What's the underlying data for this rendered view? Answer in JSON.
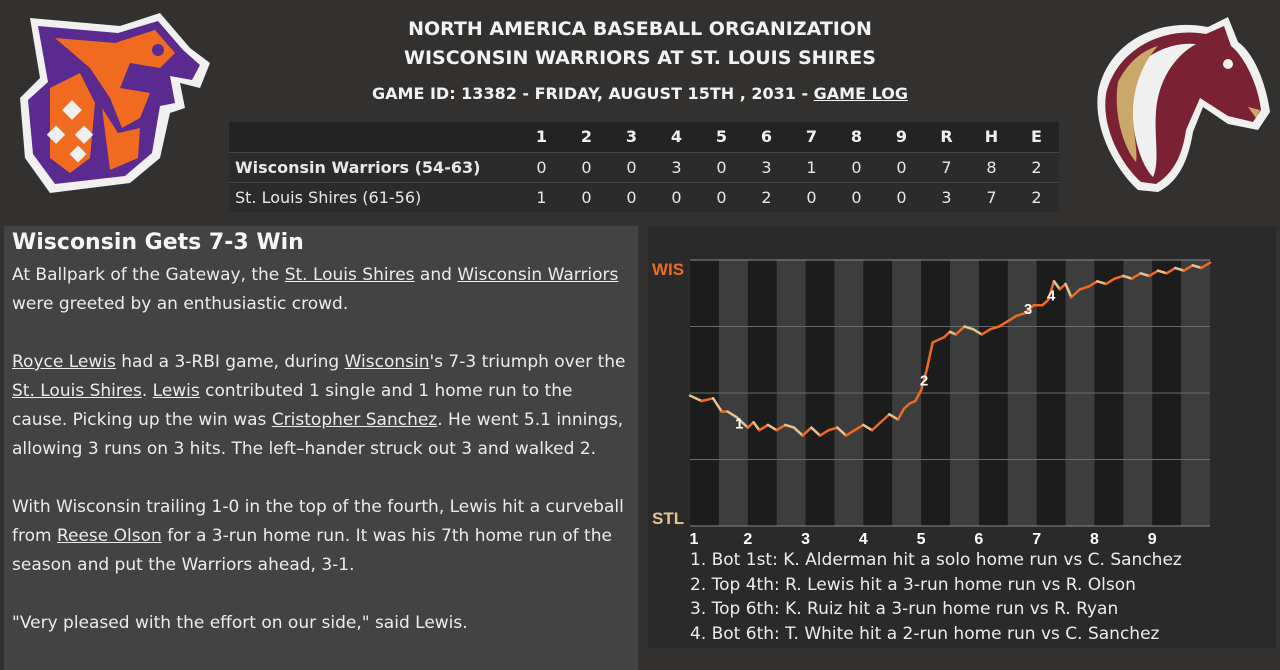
{
  "header": {
    "league": "NORTH AMERICA BASEBALL ORGANIZATION",
    "matchup": "WISCONSIN WARRIORS AT ST. LOUIS SHIRES",
    "game_info_prefix": "GAME ID: 13382 - FRIDAY, AUGUST 15TH , 2031 - ",
    "game_log_link": "GAME LOG"
  },
  "linescore": {
    "headers": [
      "1",
      "2",
      "3",
      "4",
      "5",
      "6",
      "7",
      "8",
      "9",
      "R",
      "H",
      "E"
    ],
    "away": {
      "team": "Wisconsin Warriors (54-63)",
      "scores": [
        "0",
        "0",
        "0",
        "3",
        "0",
        "3",
        "1",
        "0",
        "0",
        "7",
        "8",
        "2"
      ]
    },
    "home": {
      "team": "St. Louis Shires (61-56)",
      "scores": [
        "1",
        "0",
        "0",
        "0",
        "0",
        "2",
        "0",
        "0",
        "0",
        "3",
        "7",
        "2"
      ]
    }
  },
  "recap": {
    "headline": "Wisconsin Gets 7-3 Win",
    "p1": {
      "a": "At Ballpark of the Gateway, the ",
      "link1": "St. Louis Shires",
      "b": " and ",
      "link2": "Wisconsin Warriors",
      "c": " were greeted by an enthusiastic crowd."
    },
    "p2": {
      "link1": "Royce Lewis",
      "a": " had a 3-RBI game, during ",
      "link2": "Wisconsin",
      "b": "'s 7-3 triumph over the ",
      "link3": "St. Louis Shires",
      "c": ". ",
      "link4": "Lewis",
      "d": " contributed 1 single and 1 home run to the cause. Picking up the win was ",
      "link5": "Cristopher Sanchez",
      "e": ". He went 5.1 innings, allowing 3 runs on 3 hits. The left–hander struck out 3 and walked 2."
    },
    "p3": {
      "a": "With Wisconsin trailing 1-0 in the top of the fourth, Lewis hit a curveball from ",
      "link1": "Reese Olson",
      "b": " for a 3-run home run. It was his 7th home run of the season and put the Warriors ahead, 3-1."
    },
    "p4": "\"Very pleased with the effort on our side,\" said Lewis."
  },
  "chart_data": {
    "type": "line",
    "title": "",
    "top_label": "WIS",
    "bottom_label": "STL",
    "top_color": "#f06b1f",
    "bottom_color": "#e3c490",
    "x_ticks": [
      "1",
      "2",
      "3",
      "4",
      "5",
      "6",
      "7",
      "8",
      "9"
    ],
    "x_range": [
      0,
      9
    ],
    "y_range": [
      0,
      1
    ],
    "y_meaning": "Wisconsin win probability",
    "series": [
      {
        "x": [
          0,
          0.2,
          0.4,
          0.55,
          0.65,
          0.8,
          0.9,
          1.0,
          1.1,
          1.2,
          1.35,
          1.5,
          1.65,
          1.8,
          1.95,
          2.1,
          2.25,
          2.4,
          2.55,
          2.7,
          2.85,
          3.0,
          3.15,
          3.3,
          3.45,
          3.6,
          3.7,
          3.8,
          3.9,
          4.0,
          4.1,
          4.2,
          4.3,
          4.4,
          4.5,
          4.6,
          4.75,
          4.9,
          5.05,
          5.2,
          5.35,
          5.5,
          5.65,
          5.8,
          5.95,
          6.1,
          6.2,
          6.3,
          6.4,
          6.5,
          6.6,
          6.75,
          6.9,
          7.05,
          7.2,
          7.35,
          7.5,
          7.65,
          7.8,
          7.95,
          8.1,
          8.25,
          8.4,
          8.55,
          8.7,
          8.85,
          9.0
        ],
        "y": [
          0.49,
          0.47,
          0.48,
          0.43,
          0.43,
          0.41,
          0.39,
          0.37,
          0.39,
          0.36,
          0.38,
          0.36,
          0.38,
          0.37,
          0.34,
          0.37,
          0.34,
          0.36,
          0.37,
          0.34,
          0.36,
          0.38,
          0.36,
          0.39,
          0.42,
          0.4,
          0.44,
          0.46,
          0.47,
          0.51,
          0.59,
          0.69,
          0.7,
          0.71,
          0.73,
          0.72,
          0.75,
          0.74,
          0.72,
          0.74,
          0.75,
          0.77,
          0.79,
          0.8,
          0.83,
          0.83,
          0.85,
          0.92,
          0.89,
          0.91,
          0.86,
          0.89,
          0.9,
          0.92,
          0.91,
          0.93,
          0.94,
          0.93,
          0.95,
          0.94,
          0.96,
          0.95,
          0.97,
          0.96,
          0.98,
          0.97,
          0.99
        ]
      }
    ],
    "annotations": [
      {
        "label": "1",
        "x": 0.85,
        "y": 0.39
      },
      {
        "label": "2",
        "x": 4.05,
        "y": 0.55
      },
      {
        "label": "3",
        "x": 5.85,
        "y": 0.82
      },
      {
        "label": "4",
        "x": 6.25,
        "y": 0.87
      }
    ],
    "shaded_half_innings": "bottom halves shaded lighter"
  },
  "plays": [
    "1. Bot 1st: K. Alderman hit a solo home run vs C. Sanchez",
    "2. Top 4th: R. Lewis hit a 3-run home run vs R. Olson",
    "3. Top 6th: K. Ruiz hit a 3-run home run vs R. Ryan",
    "4. Bot 6th: T. White hit a 2-run home run vs C. Sanchez"
  ]
}
